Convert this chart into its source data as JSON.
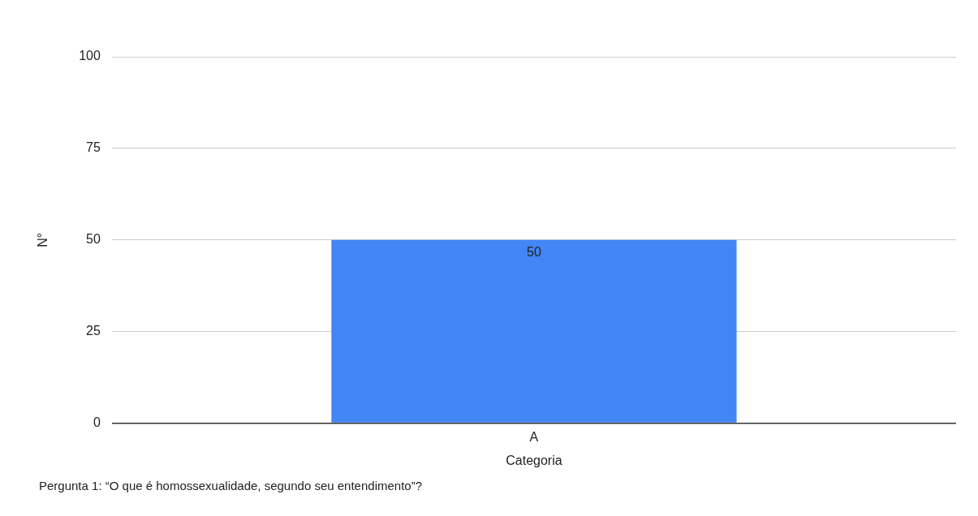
{
  "chart_data": {
    "type": "bar",
    "categories": [
      "A"
    ],
    "values": [
      50
    ],
    "color": "#4285f4",
    "xlabel": "Categoria",
    "ylabel": "N°",
    "ylim": [
      0,
      100
    ],
    "yticks": [
      0,
      25,
      50,
      75,
      100
    ],
    "grid": "y",
    "legend": false,
    "data_labels": true,
    "annotations": [
      "Pergunta 1: “O que é homossexualidade, segundo seu entendimento”?"
    ]
  }
}
